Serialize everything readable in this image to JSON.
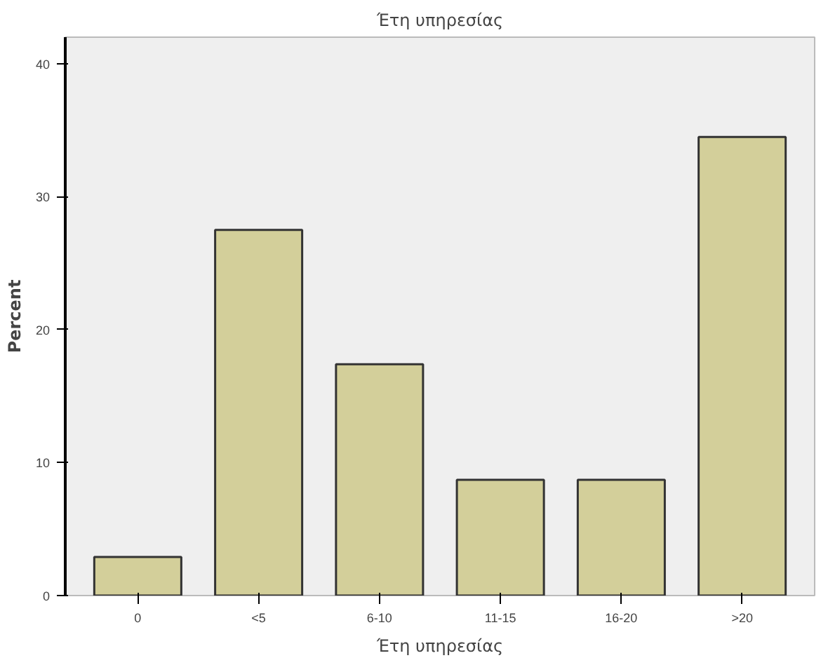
{
  "chart_data": {
    "type": "bar",
    "title": "Έτη υπηρεσίας",
    "xlabel": "Έτη υπηρεσίας",
    "ylabel": "Percent",
    "categories": [
      "0",
      "<5",
      "6-10",
      "11-15",
      "16-20",
      ">20"
    ],
    "values": [
      2.9,
      27.5,
      17.4,
      8.7,
      8.7,
      34.5
    ],
    "color": "#d3cf9a",
    "ylim": [
      0,
      42
    ],
    "yticks": [
      0,
      10,
      20,
      30,
      40
    ],
    "grid": false
  }
}
